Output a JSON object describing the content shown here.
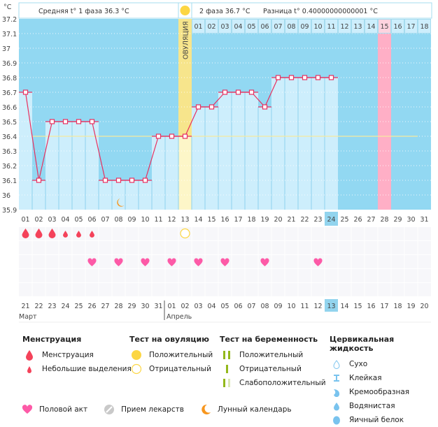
{
  "header": {
    "unit": "°C",
    "phase1": "Средняя t° 1 фаза 36.3 °C",
    "phase2": "2 фаза 36.7 °C",
    "difference": "Разница t° 0.40000000000001 °C"
  },
  "ovulation_label": "ОВУЛЯЦИЯ",
  "colors": {
    "chart_bg": "#92d8f2",
    "bar_fill": "#cdeefc",
    "line": "#e8305f",
    "coverline": "#f5e9a0",
    "ovulation": "#f7e58c",
    "pink_day": "#ffafc6",
    "current_day": "#92d4ee",
    "weekend_text": "#e8305f"
  },
  "chart_data": {
    "type": "line",
    "title": "",
    "ylabel": "°C",
    "ylim": [
      35.9,
      37.2
    ],
    "yticks": [
      "37.2",
      "37.1",
      "37",
      "36.9",
      "36.8",
      "36.7",
      "36.6",
      "36.5",
      "36.4",
      "36.3",
      "36.2",
      "36.1",
      "36",
      "35.9"
    ],
    "cycle_days": [
      "01",
      "02",
      "03",
      "04",
      "05",
      "06",
      "07",
      "08",
      "09",
      "10",
      "11",
      "12",
      "13",
      "14",
      "15",
      "16",
      "17",
      "18",
      "19",
      "20",
      "21",
      "22",
      "23",
      "24",
      "25",
      "26",
      "27",
      "28",
      "29",
      "30",
      "31"
    ],
    "temperatures": [
      36.7,
      36.1,
      36.5,
      36.5,
      36.5,
      36.5,
      36.1,
      36.1,
      36.1,
      36.1,
      36.4,
      36.4,
      36.4,
      36.6,
      36.6,
      36.7,
      36.7,
      36.7,
      36.6,
      36.8,
      36.8,
      36.8,
      36.8,
      36.8,
      null,
      null,
      null,
      null,
      null,
      null,
      null
    ],
    "coverline": 36.4,
    "ovulation_day": 13,
    "current_day": 24,
    "phase2_days": [
      "01",
      "02",
      "03",
      "04",
      "05",
      "06",
      "07",
      "08",
      "09",
      "10",
      "11",
      "12",
      "13",
      "14",
      "15",
      "16",
      "17",
      "18"
    ],
    "phase2_highlight": "15",
    "pink_day": 28,
    "calendar_dates": [
      "21",
      "22",
      "23",
      "24",
      "25",
      "26",
      "27",
      "28",
      "29",
      "30",
      "31",
      "01",
      "02",
      "03",
      "04",
      "05",
      "06",
      "07",
      "08",
      "09",
      "10",
      "11",
      "12",
      "13",
      "14",
      "15",
      "16",
      "17",
      "18",
      "19",
      "20"
    ],
    "weekend_indices": [
      5,
      6,
      12,
      13,
      19,
      20,
      26,
      27
    ],
    "today_index": 23,
    "months": [
      {
        "label": "Март",
        "start_index": 0
      },
      {
        "label": "Апрель",
        "start_index": 11
      }
    ],
    "menstruation": {
      "heavy": [
        1,
        2,
        3
      ],
      "light": [
        4,
        5,
        6
      ]
    },
    "ovulation_test_negative": [
      13
    ],
    "intercourse": [
      6,
      8,
      10,
      12,
      14,
      16,
      19,
      23
    ],
    "lunar": [
      8
    ]
  },
  "legend": {
    "menstruation": {
      "title": "Менструация",
      "items": [
        "Менструация",
        "Небольшие выделения"
      ]
    },
    "ovulation_test": {
      "title": "Тест на овуляцию",
      "items": [
        "Положительный",
        "Отрицательный"
      ]
    },
    "pregnancy_test": {
      "title": "Тест на беременность",
      "items": [
        "Положительный",
        "Отрицательный",
        "Слабоположительный"
      ]
    },
    "cervical_fluid": {
      "title": "Цервикальная жидкость",
      "items": [
        "Сухо",
        "Клейкая",
        "Кремообразная",
        "Водянистая",
        "Яичный белок"
      ]
    },
    "bottom": [
      "Половой акт",
      "Прием лекарств",
      "Лунный календарь"
    ]
  }
}
